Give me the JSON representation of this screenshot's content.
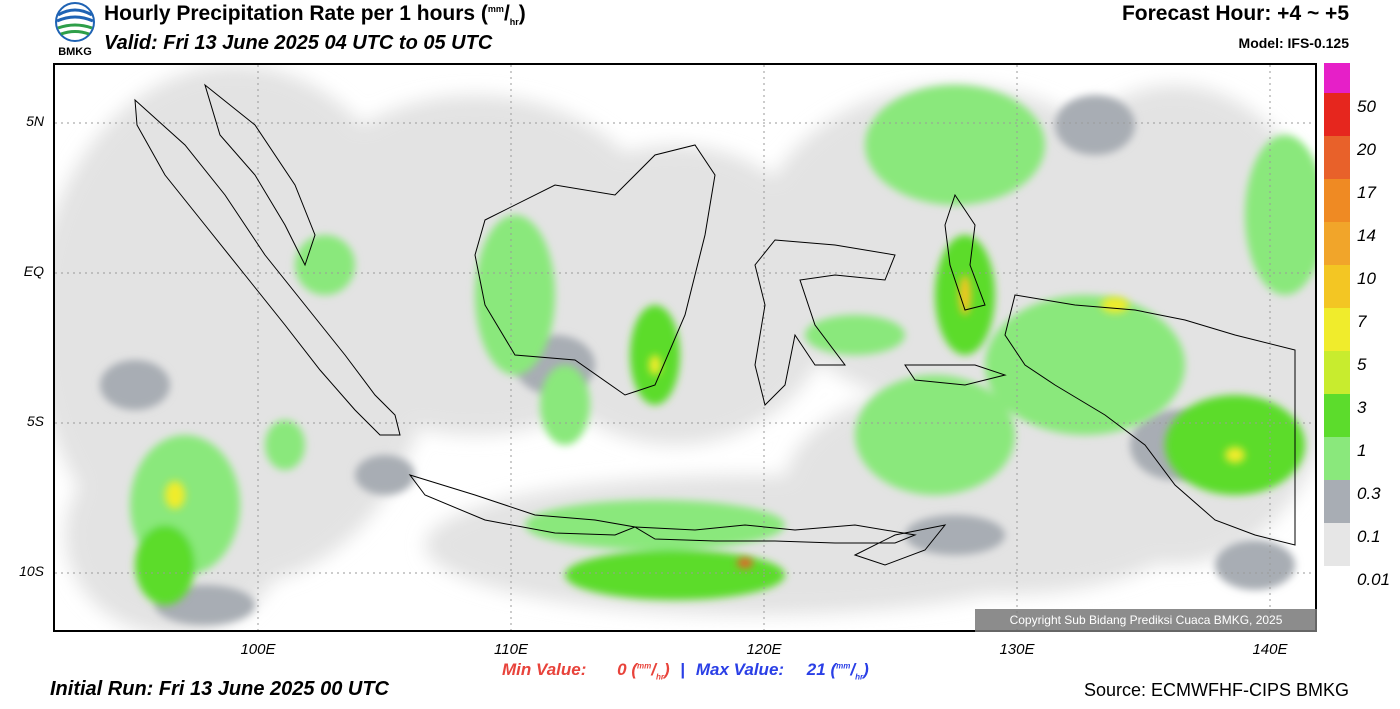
{
  "header": {
    "logo_label": "BMKG",
    "title": "Hourly Precipitation Rate per 1 hours",
    "title_unit_num": "mm",
    "title_unit_den": "hr",
    "valid": "Valid: Fri 13 June 2025 04 UTC to 05 UTC",
    "forecast_hour": "Forecast Hour: +4 ~ +5",
    "model": "Model: IFS-0.125"
  },
  "map": {
    "lat_labels": [
      "5N",
      "EQ",
      "5S",
      "10S"
    ],
    "lon_labels": [
      "100E",
      "110E",
      "120E",
      "130E",
      "140E"
    ],
    "copyright": "Copyright Sub Bidang Prediksi Cuaca BMKG, 2025"
  },
  "colorbar": {
    "labels": [
      "50",
      "20",
      "17",
      "14",
      "10",
      "7",
      "5",
      "3",
      "1",
      "0.3",
      "0.1",
      "0.01"
    ],
    "colors": [
      "#e61fc8",
      "#e6261e",
      "#e8612a",
      "#ef8a23",
      "#f1a52a",
      "#f3c623",
      "#f0ec2c",
      "#c8ec2e",
      "#5cdc2c",
      "#8ae87c",
      "#a8adb4",
      "#e6e6e6"
    ]
  },
  "footer": {
    "min_label": "Min Value:",
    "min_value": "0",
    "max_label": "Max Value:",
    "max_value": "21",
    "unit_num": "mm",
    "unit_den": "hr",
    "separator": "|",
    "initial_run": "Initial Run: Fri 13 June 2025 00 UTC",
    "source": "Source: ECMWFHF-CIPS BMKG"
  }
}
